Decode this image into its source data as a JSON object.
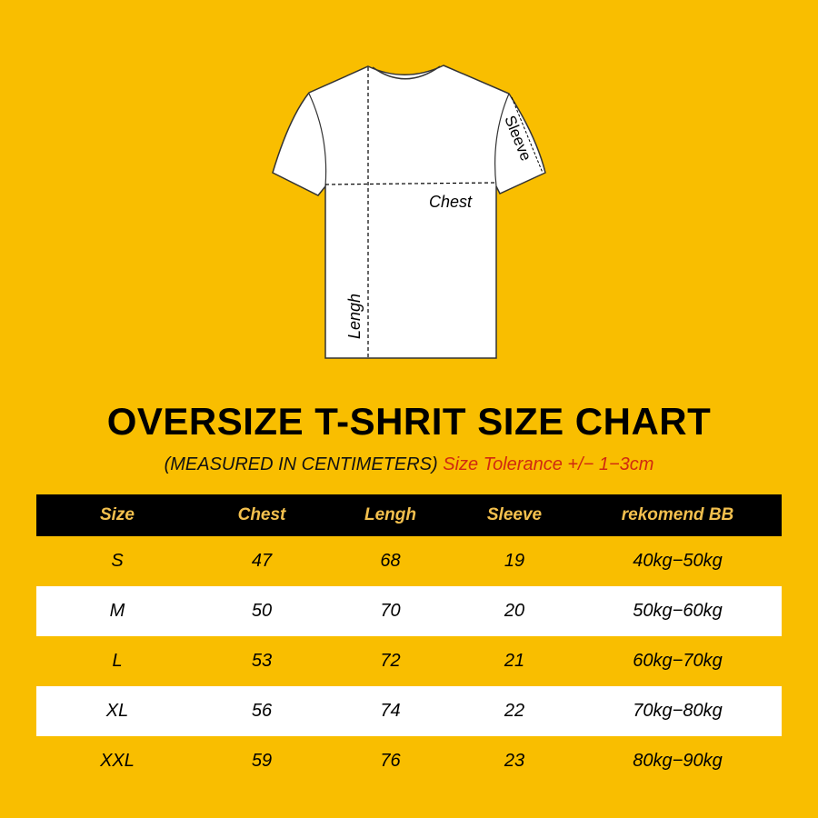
{
  "colors": {
    "background": "#F9BE00",
    "header_bg": "#000000",
    "header_text": "#F3C04E",
    "tolerance_text": "#D02A10",
    "stripe": "#FFFFFF"
  },
  "diagram": {
    "labels": {
      "sleeve": "Sleeve",
      "chest": "Chest",
      "length": "Lengh"
    }
  },
  "title": "OVERSIZE T-SHRIT SIZE CHART",
  "subtitle": {
    "measured": "(MEASURED IN CENTIMETERS)",
    "tolerance": "Size Tolerance +/− 1−3cm"
  },
  "table": {
    "headers": [
      "Size",
      "Chest",
      "Lengh",
      "Sleeve",
      "rekomend BB"
    ],
    "rows": [
      [
        "S",
        "47",
        "68",
        "19",
        "40kg−50kg"
      ],
      [
        "M",
        "50",
        "70",
        "20",
        "50kg−60kg"
      ],
      [
        "L",
        "53",
        "72",
        "21",
        "60kg−70kg"
      ],
      [
        "XL",
        "56",
        "74",
        "22",
        "70kg−80kg"
      ],
      [
        "XXL",
        "59",
        "76",
        "23",
        "80kg−90kg"
      ]
    ]
  }
}
